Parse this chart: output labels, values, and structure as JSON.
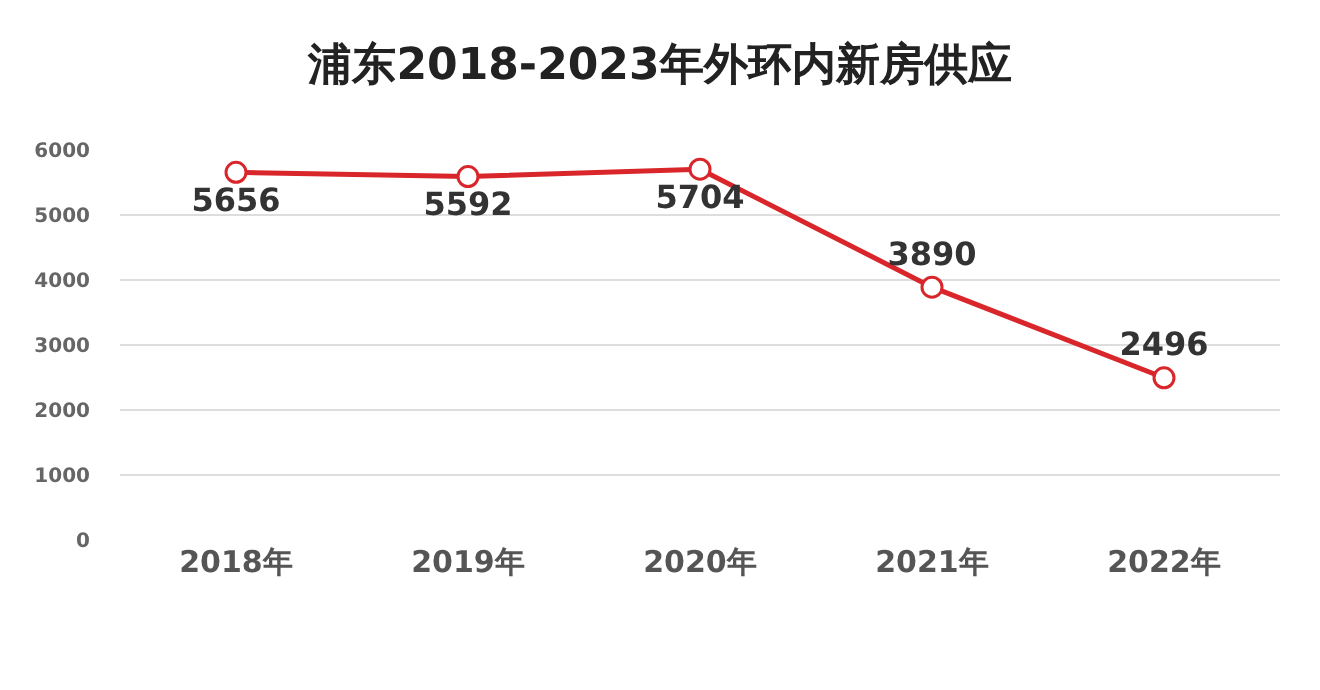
{
  "chart_data": {
    "type": "line",
    "title": "浦东2018-2023年外环内新房供应",
    "categories": [
      "2018年",
      "2019年",
      "2020年",
      "2021年",
      "2022年"
    ],
    "series": [
      {
        "color": "#d9262a",
        "values": [
          5656,
          5592,
          5704,
          3890,
          2496
        ]
      }
    ],
    "ylim": [
      0,
      6000
    ],
    "yticks": [
      0,
      1000,
      2000,
      3000,
      4000,
      5000,
      6000
    ],
    "grid": "y",
    "legend": false,
    "marker": "circle",
    "line_style": "solid",
    "data_labels": true
  }
}
